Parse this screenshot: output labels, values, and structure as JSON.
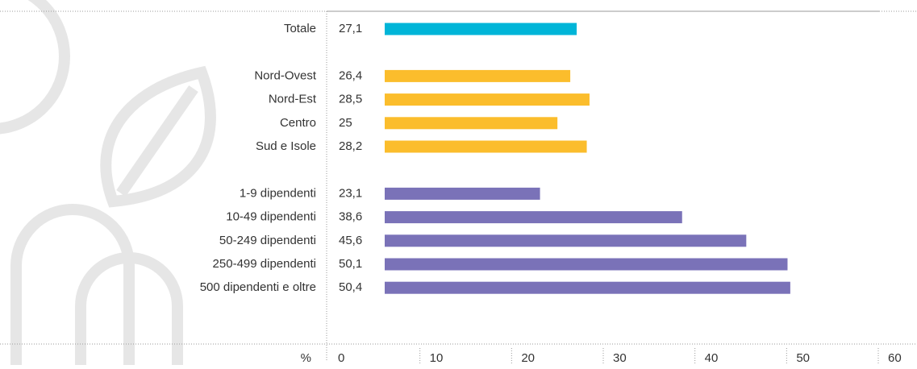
{
  "chart_data": {
    "type": "bar",
    "orientation": "horizontal",
    "categories": [
      "Totale",
      null,
      "Nord-Ovest",
      "Nord-Est",
      "Centro",
      "Sud e Isole",
      null,
      "1-9 dipendenti",
      "10-49 dipendenti",
      "50-249 dipendenti",
      "250-499 dipendenti",
      "500 dipendenti e oltre"
    ],
    "values": [
      27.1,
      null,
      26.4,
      28.5,
      25,
      28.2,
      null,
      23.1,
      38.6,
      45.6,
      50.1,
      50.4
    ],
    "value_labels": [
      "27,1",
      null,
      "26,4",
      "28,5",
      "25",
      "28,2",
      null,
      "23,1",
      "38,6",
      "45,6",
      "50,1",
      "50,4"
    ],
    "colors": [
      "#00b5d8",
      null,
      "#fbbd2c",
      "#fbbd2c",
      "#fbbd2c",
      "#fbbd2c",
      null,
      "#7a72b8",
      "#7a72b8",
      "#7a72b8",
      "#7a72b8",
      "#7a72b8"
    ],
    "x_label": "%",
    "xlim": [
      0,
      60
    ],
    "xticks": [
      0,
      10,
      20,
      30,
      40,
      50,
      60
    ]
  }
}
